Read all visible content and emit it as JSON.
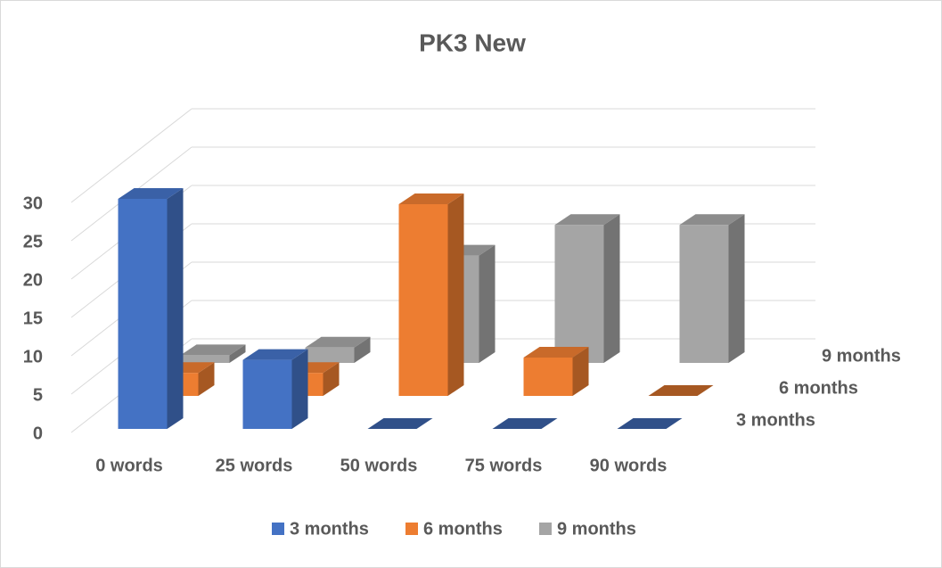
{
  "chart_data": {
    "type": "bar3d",
    "title": "PK3 New",
    "categories": [
      "0 words",
      "25 words",
      "50 words",
      "75 words",
      "90 words"
    ],
    "series": [
      {
        "name": "3 months",
        "color": "#4472c4",
        "values": [
          30,
          9,
          0,
          0,
          0
        ]
      },
      {
        "name": "6 months",
        "color": "#ed7d31",
        "values": [
          3,
          3,
          25,
          5,
          0
        ]
      },
      {
        "name": "9 months",
        "color": "#a5a5a5",
        "values": [
          1,
          2,
          14,
          18,
          18
        ]
      }
    ],
    "ylim": [
      0,
      30
    ],
    "yticks": [
      0,
      5,
      10,
      15,
      20,
      25,
      30
    ],
    "grid": true,
    "legend": "bottom"
  }
}
